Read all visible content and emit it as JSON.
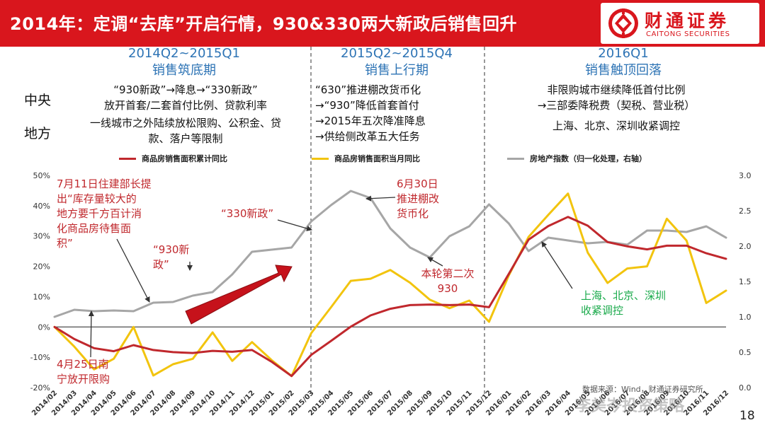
{
  "header": {
    "title": "2014年：定调“去库”开启行情，930&330两大新政后销售回升",
    "logo_cn": "财通证券",
    "logo_en": "CAITONG SECURITIES",
    "colors": {
      "bar": "#d9161d",
      "text": "#ffffff"
    }
  },
  "phases": [
    {
      "period": "2014Q2~2015Q1",
      "name": "销售筑底期",
      "central": [
        "“930新政”→降息→“330新政”",
        "放开首套/二套首付比例、贷款利率"
      ],
      "local": [
        "一线城市之外陆续放松限购、公积金、贷",
        "款、落户等限制"
      ]
    },
    {
      "period": "2015Q2~2015Q4",
      "name": "销售上行期",
      "central": [
        "“630”推进棚改货币化",
        "→“930”降低首套首付",
        "→2015年五次降准降息",
        "→供给侧改革五大任务"
      ],
      "local": []
    },
    {
      "period": "2016Q1",
      "name": "销售触顶回落",
      "central": [
        "非限购城市继续降低首付比例",
        "→三部委降税费（契税、营业税）"
      ],
      "local": [
        "上海、北京、深圳收紧调控"
      ]
    }
  ],
  "row_labels": {
    "central": "中央",
    "local": "地方"
  },
  "chart_data": {
    "type": "line",
    "title": "",
    "xlabel": "",
    "ylabel": "",
    "ylabel_right": "",
    "x": [
      "2014/02",
      "2014/03",
      "2014/04",
      "2014/05",
      "2014/06",
      "2014/07",
      "2014/08",
      "2014/09",
      "2014/10",
      "2014/11",
      "2014/12",
      "2015/01",
      "2015/02",
      "2015/03",
      "2015/04",
      "2015/05",
      "2015/06",
      "2015/07",
      "2015/08",
      "2015/09",
      "2015/10",
      "2015/11",
      "2015/12",
      "2016/01",
      "2016/02",
      "2016/03",
      "2016/04",
      "2016/05",
      "2016/06",
      "2016/07",
      "2016/08",
      "2016/09",
      "2016/10",
      "2016/11",
      "2016/12"
    ],
    "ylim": [
      -0.2,
      0.5
    ],
    "yticks": [
      "-20%",
      "-10%",
      "0%",
      "10%",
      "20%",
      "30%",
      "40%",
      "50%"
    ],
    "ylim_right": [
      0,
      3.0
    ],
    "yticks_right": [
      "0.0",
      "0.5",
      "1.0",
      "1.5",
      "2.0",
      "2.5",
      "3.0"
    ],
    "grid": false,
    "legend_position": "top",
    "series": [
      {
        "name": "商品房销售面积累计同比",
        "axis": "left",
        "color": "#c0282d",
        "values": [
          0.0,
          -0.04,
          -0.07,
          -0.08,
          -0.06,
          -0.076,
          -0.083,
          -0.086,
          -0.079,
          -0.082,
          -0.076,
          -0.115,
          -0.162,
          -0.092,
          -0.046,
          0.001,
          0.038,
          0.06,
          0.072,
          0.074,
          0.072,
          0.074,
          0.065,
          0.175,
          0.288,
          0.333,
          0.363,
          0.334,
          0.28,
          0.266,
          0.256,
          0.268,
          0.268,
          0.243,
          0.225
        ]
      },
      {
        "name": "商品房销售面积当月同比",
        "axis": "left",
        "color": "#f2c40e",
        "values": [
          0.0,
          -0.065,
          -0.14,
          -0.105,
          0.0,
          -0.16,
          -0.123,
          -0.105,
          -0.018,
          -0.112,
          -0.05,
          -0.11,
          -0.162,
          -0.02,
          0.065,
          0.152,
          0.159,
          0.188,
          0.146,
          0.09,
          0.062,
          0.087,
          0.017,
          0.17,
          0.297,
          0.37,
          0.44,
          0.245,
          0.145,
          0.193,
          0.2,
          0.357,
          0.285,
          0.079,
          0.12
        ]
      },
      {
        "name": "房地产指数（归一化处理，右轴）",
        "axis": "right",
        "color": "#a6a6a6",
        "values": [
          1.0,
          1.1,
          1.08,
          1.09,
          1.08,
          1.2,
          1.21,
          1.3,
          1.35,
          1.6,
          1.92,
          1.95,
          1.98,
          2.35,
          2.58,
          2.78,
          2.68,
          2.25,
          1.98,
          1.84,
          2.14,
          2.28,
          2.59,
          2.32,
          1.93,
          2.12,
          2.08,
          2.04,
          2.06,
          2.02,
          2.22,
          2.22,
          2.2,
          2.28,
          2.12
        ]
      }
    ],
    "annotations": [
      {
        "text": [
          "7月11日住建部长提",
          "出“库存量较大的",
          "地方要千方百计消",
          "化商品房待售面",
          "积”"
        ],
        "style": "red"
      },
      {
        "text": [
          "“330新政”"
        ],
        "style": "red"
      },
      {
        "text": [
          "“930新",
          "政”"
        ],
        "style": "red"
      },
      {
        "text": [
          "4月25日南",
          "宁放开限购"
        ],
        "style": "red"
      },
      {
        "text": [
          "6月30日",
          "推进棚改",
          "货币化"
        ],
        "style": "red"
      },
      {
        "text": [
          "本轮第二次",
          "930"
        ],
        "style": "red"
      },
      {
        "text": [
          "上海、北京、深圳",
          "收紧调控"
        ],
        "style": "green"
      }
    ]
  },
  "footer": {
    "source": "数据来源：Wind，财通证券研究所",
    "watermark": "李美岑投资策略",
    "page_number": "18"
  }
}
